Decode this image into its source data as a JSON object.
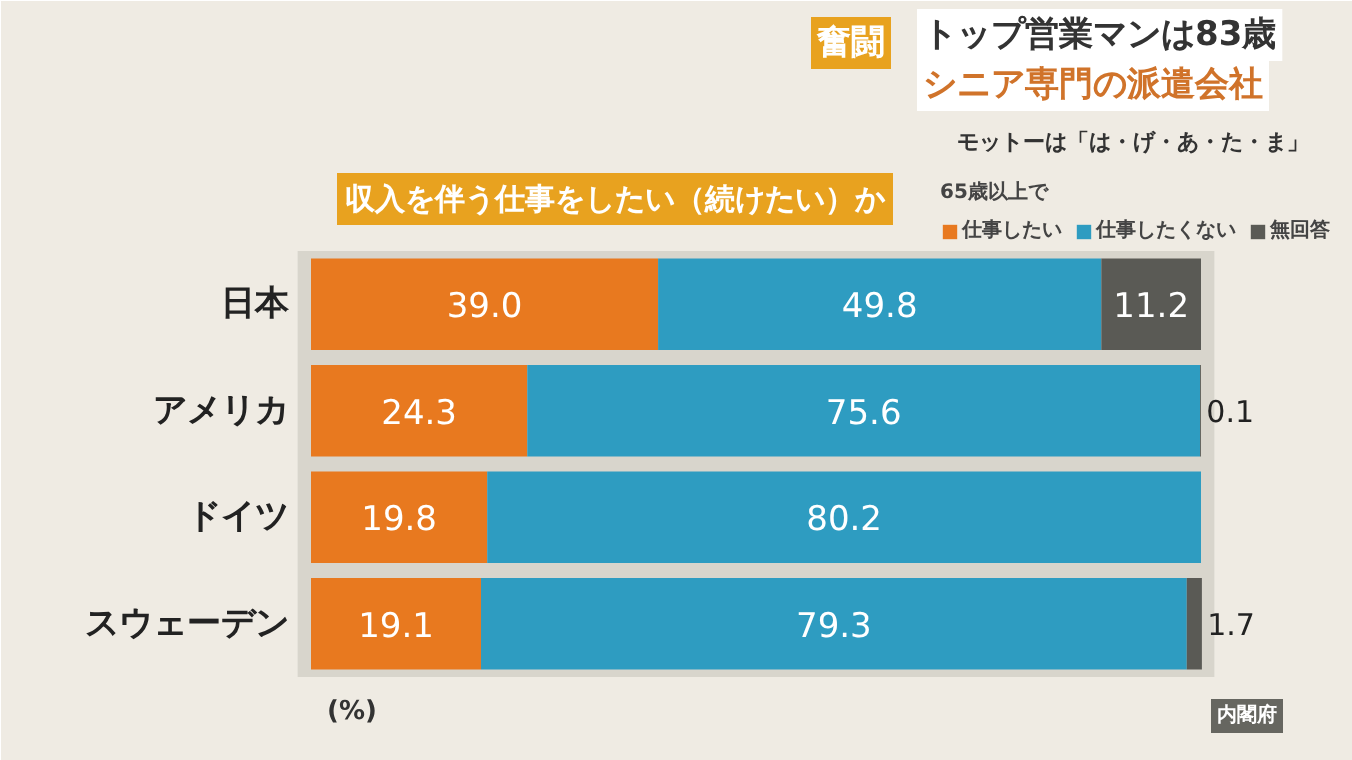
{
  "chart_data": {
    "type": "bar",
    "orientation": "horizontal",
    "stacked": true,
    "title": "収入を伴う仕事をしたい（続けたい）か",
    "legend_title": "65歳以上で",
    "categories": [
      "日本",
      "アメリカ",
      "ドイツ",
      "スウェーデン"
    ],
    "series": [
      {
        "name": "仕事したい",
        "color": "#e8791f",
        "values": [
          39.0,
          24.3,
          19.8,
          19.1
        ],
        "value_labels": [
          "39.0",
          "24.3",
          "19.8",
          "19.1"
        ]
      },
      {
        "name": "仕事したくない",
        "color": "#2e9cc1",
        "values": [
          49.8,
          75.6,
          80.2,
          79.3
        ],
        "value_labels": [
          "49.8",
          "75.6",
          "80.2",
          "79.3"
        ]
      },
      {
        "name": "無回答",
        "color": "#5a5a55",
        "values": [
          11.2,
          0.1,
          null,
          1.7
        ],
        "value_labels": [
          "11.2",
          "0.1",
          null,
          "1.7"
        ]
      }
    ],
    "xlim": [
      0,
      100
    ],
    "tick_labels": "y",
    "grid": false,
    "legend": "top right",
    "annotations": [
      "奮闘",
      "トップ営業マンは83歳",
      "シニア専門の派遣会社",
      "モットーは「は・げ・あ・た・ま」",
      "(%)",
      "内閣府"
    ]
  }
}
